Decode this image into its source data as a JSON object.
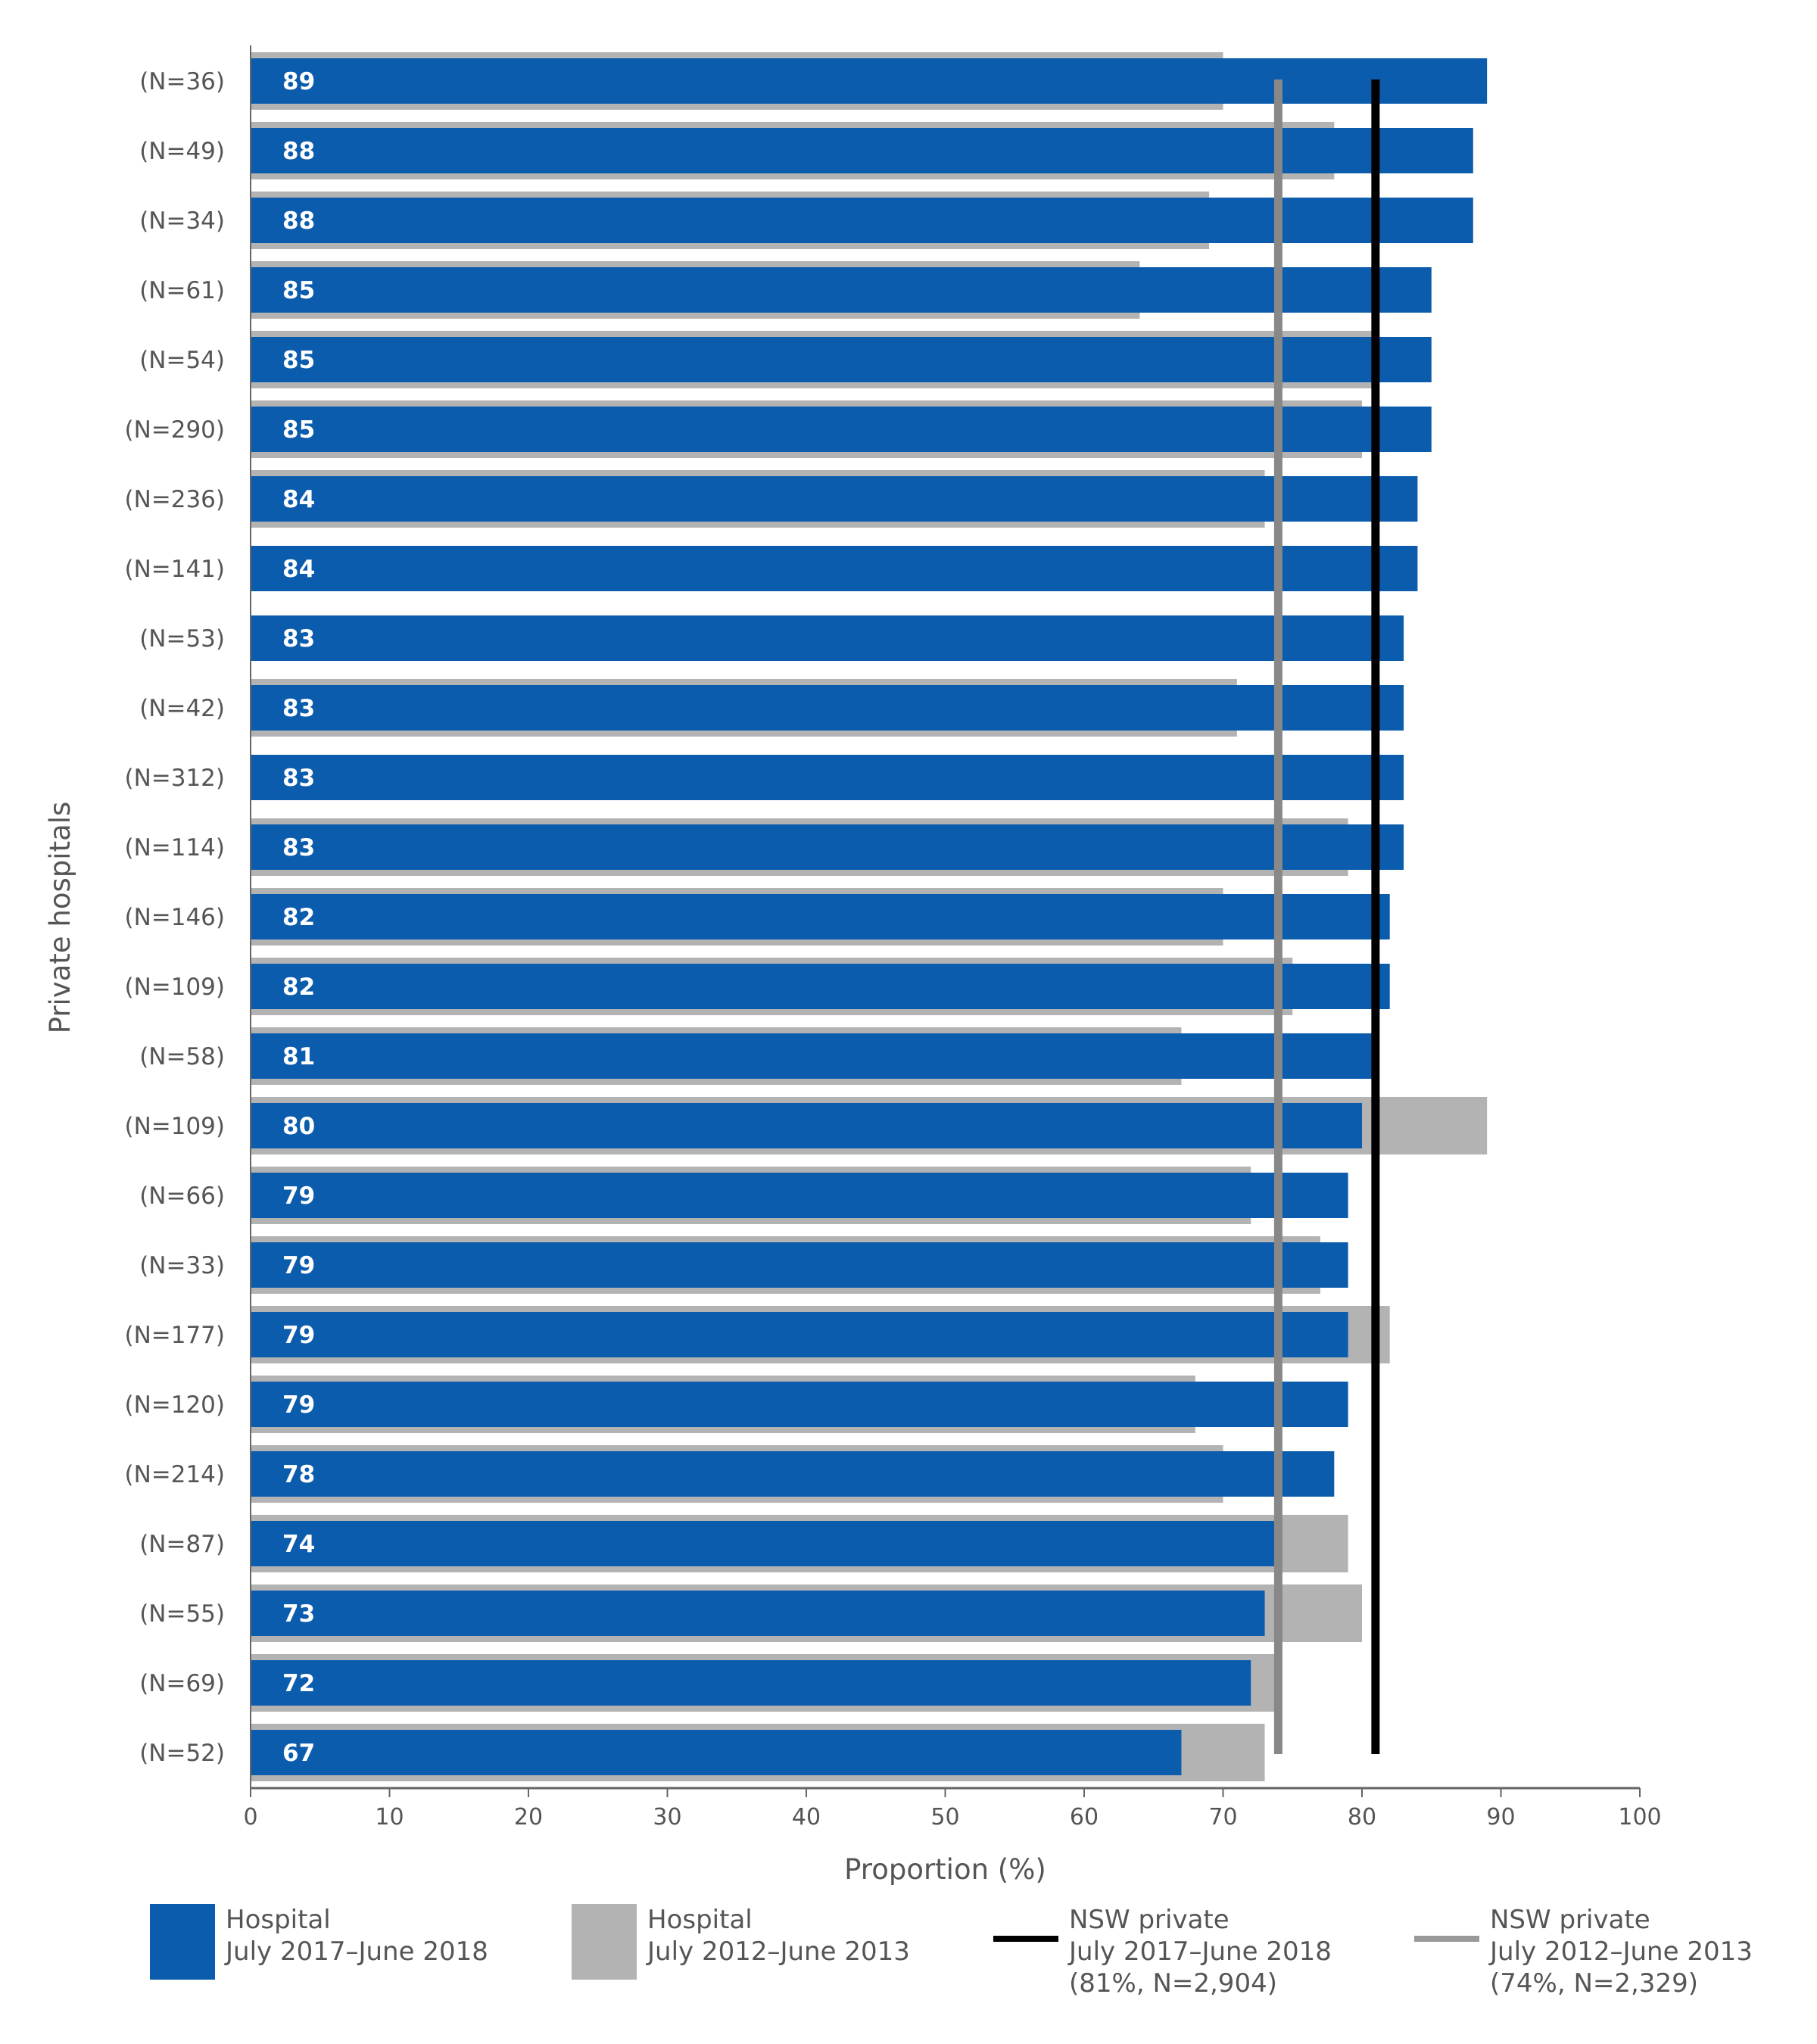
{
  "chart_data": {
    "type": "bar",
    "orientation": "horizontal",
    "ylabel": "Private hospitals",
    "xlabel": "Proportion (%)",
    "xlim": [
      0,
      100
    ],
    "xticks": [
      "0",
      "10",
      "20",
      "30",
      "40",
      "50",
      "60",
      "70",
      "80",
      "90",
      "100"
    ],
    "grid": false,
    "legend_position": "bottom",
    "categories": [
      "(N=36)",
      "(N=49)",
      "(N=34)",
      "(N=61)",
      "(N=54)",
      "(N=290)",
      "(N=236)",
      "(N=141)",
      "(N=53)",
      "(N=42)",
      "(N=312)",
      "(N=114)",
      "(N=146)",
      "(N=109)",
      "(N=58)",
      "(N=109)",
      "(N=66)",
      "(N=33)",
      "(N=177)",
      "(N=120)",
      "(N=214)",
      "(N=87)",
      "(N=55)",
      "(N=69)",
      "(N=52)"
    ],
    "series": [
      {
        "name": "Hospital July 2017–June 2018",
        "color": "#0b5cad",
        "values": [
          89,
          88,
          88,
          85,
          85,
          85,
          84,
          84,
          83,
          83,
          83,
          83,
          82,
          82,
          81,
          80,
          79,
          79,
          79,
          79,
          78,
          74,
          73,
          72,
          67
        ]
      },
      {
        "name": "Hospital July 2012–June 2013",
        "color": "#b3b3b3",
        "values": [
          70,
          78,
          69,
          64,
          81,
          80,
          73,
          null,
          null,
          71,
          null,
          79,
          70,
          75,
          67,
          89,
          72,
          77,
          82,
          68,
          70,
          79,
          80,
          74,
          73
        ]
      }
    ],
    "reference_lines": [
      {
        "name": "NSW private July 2017–June 2018 (81%, N=2,904)",
        "value": 81,
        "color": "#000000"
      },
      {
        "name": "NSW private July 2012–June 2013 (74%, N=2,329)",
        "value": 74,
        "color": "#888888"
      }
    ]
  },
  "legend": [
    {
      "line1": "Hospital",
      "line2": "July 2017–June 2018",
      "color": "#0b5cad"
    },
    {
      "line1": "Hospital",
      "line2": "July 2012–June 2013",
      "color": "#b3b3b3"
    },
    {
      "line1": "NSW private",
      "line2": "July 2017–June 2018",
      "line3": "(81%, N=2,904)",
      "color": "#000000"
    },
    {
      "line1": "NSW private",
      "line2": "July 2012–June 2013",
      "line3": "(74%, N=2,329)",
      "color": "#999999"
    }
  ]
}
